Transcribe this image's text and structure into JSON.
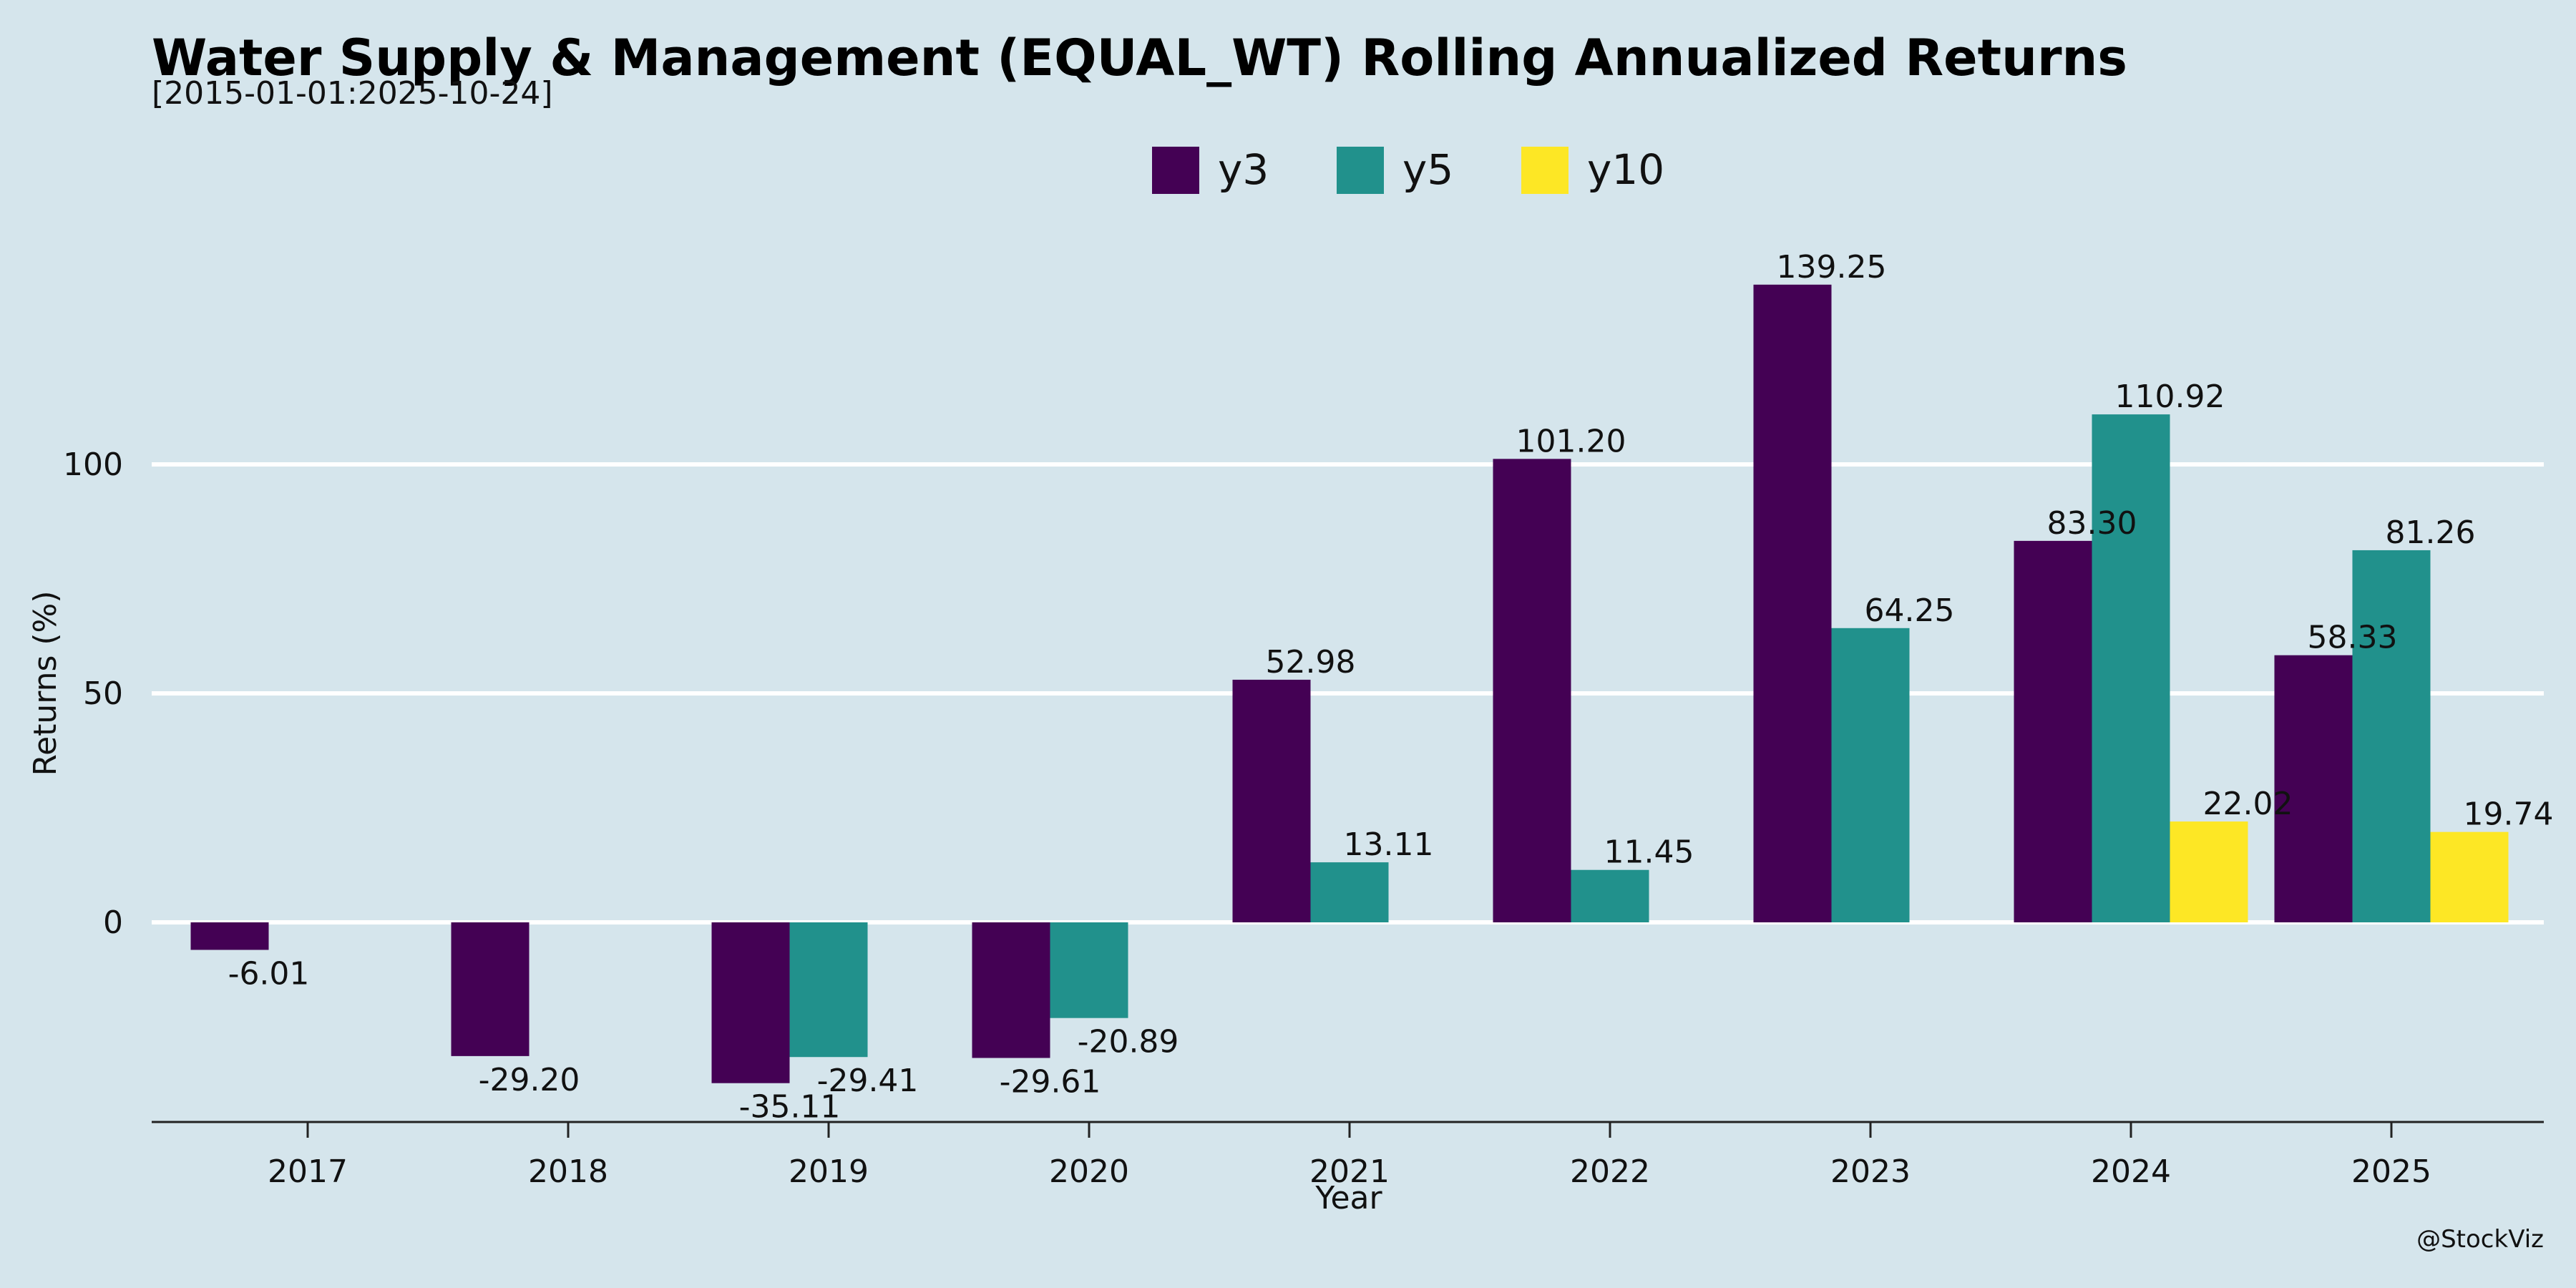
{
  "chart_data": {
    "type": "bar",
    "title": "Water Supply & Management (EQUAL_WT) Rolling Annualized Returns",
    "subtitle": "[2015-01-01:2025-10-24]",
    "xlabel": "Year",
    "ylabel": "Returns (%)",
    "credit": "@StockViz",
    "categories": [
      "2017",
      "2018",
      "2019",
      "2020",
      "2021",
      "2022",
      "2023",
      "2024",
      "2025"
    ],
    "series": [
      {
        "name": "y3",
        "color": "#440154",
        "values": [
          -6.01,
          -29.2,
          -35.11,
          -29.61,
          52.98,
          101.2,
          139.25,
          83.3,
          58.33
        ]
      },
      {
        "name": "y5",
        "color": "#21918c",
        "values": [
          null,
          null,
          -29.41,
          -20.89,
          13.11,
          11.45,
          64.25,
          110.92,
          81.26
        ]
      },
      {
        "name": "y10",
        "color": "#fde725",
        "values": [
          null,
          null,
          null,
          null,
          null,
          null,
          null,
          22.02,
          19.74
        ]
      }
    ],
    "yticks": [
      0,
      50,
      100
    ],
    "ylim": [
      -43.5,
      157
    ],
    "grid": true,
    "legend_position": "top-center"
  }
}
